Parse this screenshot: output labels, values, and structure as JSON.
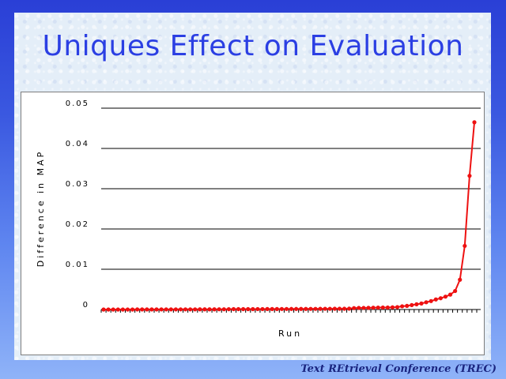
{
  "slide": {
    "title": "Uniques Effect on Evaluation",
    "footer": "Text REtrieval Conference (TREC)"
  },
  "chart_data": {
    "type": "line",
    "title": "",
    "xlabel": "Run",
    "ylabel": "Difference in MAP",
    "ylim": [
      0,
      0.05
    ],
    "yticks": [
      {
        "value": 0,
        "label": "0"
      },
      {
        "value": 0.01,
        "label": "0.01"
      },
      {
        "value": 0.02,
        "label": "0.02"
      },
      {
        "value": 0.03,
        "label": "0.03"
      },
      {
        "value": 0.04,
        "label": "0.04"
      },
      {
        "value": 0.05,
        "label": "0.05"
      }
    ],
    "grid": true,
    "series": [
      {
        "color": "#ee1111",
        "x": [
          1,
          2,
          3,
          4,
          5,
          6,
          7,
          8,
          9,
          10,
          11,
          12,
          13,
          14,
          15,
          16,
          17,
          18,
          19,
          20,
          21,
          22,
          23,
          24,
          25,
          26,
          27,
          28,
          29,
          30,
          31,
          32,
          33,
          34,
          35,
          36,
          37,
          38,
          39,
          40,
          41,
          42,
          43,
          44,
          45,
          46,
          47,
          48,
          49,
          50,
          51,
          52,
          53,
          54,
          55,
          56,
          57,
          58,
          59,
          60,
          61,
          62,
          63,
          64,
          65,
          66,
          67,
          68,
          69,
          70,
          71,
          72,
          73,
          74,
          75,
          76,
          77,
          78
        ],
        "values": [
          0,
          0,
          0,
          0,
          0,
          0,
          0,
          2e-05,
          2e-05,
          2e-05,
          2e-05,
          2e-05,
          3e-05,
          3e-05,
          3e-05,
          3e-05,
          4e-05,
          4e-05,
          4e-05,
          4e-05,
          5e-05,
          5e-05,
          5e-05,
          5e-05,
          6e-05,
          6e-05,
          8e-05,
          0.0001,
          0.0001,
          0.0001,
          0.0001,
          0.0001,
          0.00011,
          0.00011,
          0.00012,
          0.00012,
          0.00012,
          0.00013,
          0.00013,
          0.00014,
          0.00014,
          0.00015,
          0.00015,
          0.00016,
          0.00016,
          0.00017,
          0.00018,
          0.00018,
          0.0002,
          0.0002,
          0.0002,
          0.00022,
          0.00035,
          0.0004,
          0.0004,
          0.00042,
          0.00045,
          0.00048,
          0.0005,
          0.0005,
          0.00055,
          0.0006,
          0.0008,
          0.0009,
          0.0011,
          0.0013,
          0.0015,
          0.0018,
          0.0021,
          0.0025,
          0.0028,
          0.0032,
          0.0037,
          0.0046,
          0.0074,
          0.0158,
          0.0332,
          0.0465
        ]
      }
    ]
  }
}
